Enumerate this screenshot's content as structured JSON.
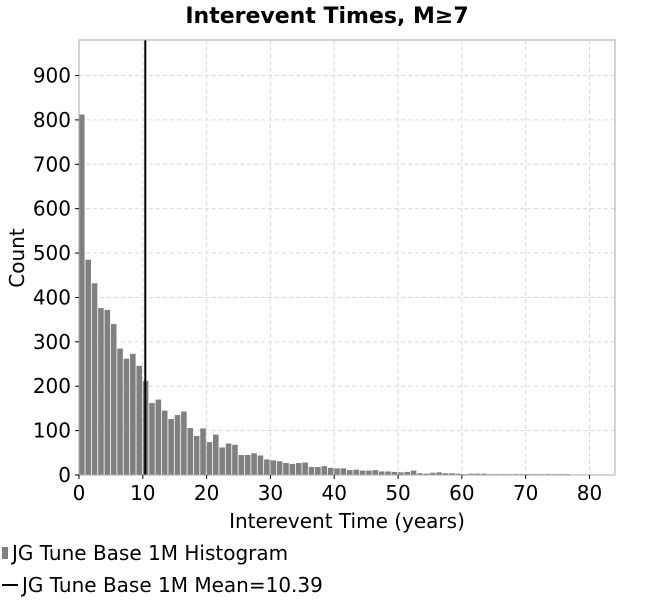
{
  "chart_data": {
    "type": "bar",
    "title": "Interevent Times, M≥7",
    "xlabel": "Interevent Time (years)",
    "ylabel": "Count",
    "xlim": [
      0,
      84
    ],
    "ylim": [
      0,
      980
    ],
    "xticks": [
      0,
      10,
      20,
      30,
      40,
      50,
      60,
      70,
      80
    ],
    "yticks": [
      0,
      100,
      200,
      300,
      400,
      500,
      600,
      700,
      800,
      900
    ],
    "grid": true,
    "bin_width": 1,
    "bin_starts": [
      0,
      1,
      2,
      3,
      4,
      5,
      6,
      7,
      8,
      9,
      10,
      11,
      12,
      13,
      14,
      15,
      16,
      17,
      18,
      19,
      20,
      21,
      22,
      23,
      24,
      25,
      26,
      27,
      28,
      29,
      30,
      31,
      32,
      33,
      34,
      35,
      36,
      37,
      38,
      39,
      40,
      41,
      42,
      43,
      44,
      45,
      46,
      47,
      48,
      49,
      50,
      51,
      52,
      53,
      54,
      55,
      56,
      57,
      58,
      59,
      60,
      61,
      62,
      63,
      64,
      65,
      66,
      67,
      68,
      69,
      70,
      71,
      72,
      73,
      74,
      75,
      76,
      77,
      78,
      79,
      80,
      81,
      82,
      83
    ],
    "series": [
      {
        "name": "JG Tune Base 1M Histogram",
        "color": "#808080",
        "values": [
          812,
          485,
          432,
          376,
          372,
          340,
          285,
          262,
          273,
          246,
          212,
          162,
          170,
          145,
          126,
          135,
          143,
          106,
          88,
          105,
          74,
          91,
          62,
          71,
          68,
          45,
          45,
          49,
          44,
          35,
          33,
          31,
          27,
          25,
          27,
          28,
          18,
          18,
          20,
          16,
          15,
          15,
          11,
          12,
          10,
          10,
          11,
          8,
          8,
          7,
          6,
          7,
          10,
          4,
          3,
          5,
          6,
          4,
          4,
          3,
          2,
          3,
          3,
          3,
          2,
          2,
          2,
          2,
          2,
          2,
          2,
          2,
          2,
          2,
          2,
          2,
          2,
          1,
          1,
          1,
          1,
          1,
          1,
          1
        ]
      }
    ],
    "mean_line": {
      "name": "JG Tune Base 1M Mean=10.39",
      "x": 10.39,
      "color": "#000000"
    },
    "legend_position": "bottom-left"
  }
}
